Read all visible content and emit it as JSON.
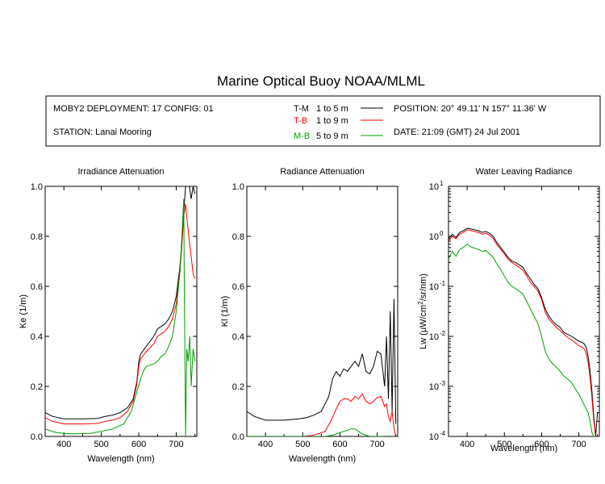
{
  "header": {
    "title": "Marine Optical Buoy NOAA/MLML",
    "deployment": "MOBY2 DEPLOYMENT: 17 CONFIG: 01",
    "station": "STATION: Lanai Mooring",
    "position": "POSITION: 20° 49.11' N   157° 11.36' W",
    "date": "DATE: 21:09 (GMT) 24 Jul 2001"
  },
  "legend": [
    {
      "key": "T-M",
      "range": "1 to 5  m",
      "color": "#000000"
    },
    {
      "key": "T-B",
      "range": "1 to 9  m",
      "color": "#ff0000"
    },
    {
      "key": "M-B",
      "range": "5 to 9  m",
      "color": "#00a000"
    }
  ],
  "chart_data": [
    {
      "type": "line",
      "title": "Irradiance Attenuation",
      "xlabel": "Wavelength (nm)",
      "ylabel": "Ke  (1/m)",
      "xlim": [
        350,
        755
      ],
      "ylim": [
        0,
        1
      ],
      "xticks": [
        400,
        500,
        600,
        700
      ],
      "yticks": [
        0.0,
        0.2,
        0.4,
        0.6,
        0.8,
        1.0
      ],
      "ytick_labels": [
        "0.0",
        "0.2",
        "0.4",
        "0.6",
        "0.8",
        "1.0"
      ],
      "series": [
        {
          "name": "T-M",
          "color": "#000000",
          "x": [
            350,
            370,
            400,
            450,
            490,
            510,
            530,
            550,
            570,
            585,
            595,
            600,
            605,
            610,
            620,
            640,
            650,
            660,
            670,
            680,
            690,
            700,
            710,
            715,
            720,
            725,
            730,
            735,
            740,
            745,
            750
          ],
          "y": [
            0.095,
            0.08,
            0.07,
            0.07,
            0.072,
            0.08,
            0.085,
            0.095,
            0.115,
            0.15,
            0.22,
            0.3,
            0.33,
            0.34,
            0.36,
            0.4,
            0.43,
            0.44,
            0.45,
            0.47,
            0.5,
            0.56,
            0.68,
            0.78,
            0.9,
            1.0,
            1.0,
            1.0,
            0.95,
            1.0,
            0.97
          ]
        },
        {
          "name": "T-B",
          "color": "#ff0000",
          "x": [
            350,
            370,
            400,
            450,
            490,
            510,
            530,
            550,
            570,
            585,
            595,
            600,
            605,
            610,
            620,
            640,
            650,
            660,
            670,
            680,
            690,
            700,
            710,
            715,
            720,
            725,
            730,
            735,
            740,
            745,
            750
          ],
          "y": [
            0.075,
            0.06,
            0.05,
            0.05,
            0.052,
            0.06,
            0.065,
            0.075,
            0.1,
            0.14,
            0.21,
            0.28,
            0.31,
            0.32,
            0.34,
            0.37,
            0.4,
            0.41,
            0.42,
            0.44,
            0.47,
            0.53,
            0.66,
            0.76,
            0.88,
            0.93,
            0.85,
            0.78,
            0.72,
            0.65,
            0.63
          ]
        },
        {
          "name": "M-B",
          "color": "#00a000",
          "x": [
            350,
            380,
            420,
            470,
            500,
            530,
            560,
            580,
            595,
            605,
            612,
            620,
            640,
            650,
            660,
            670,
            680,
            690,
            700,
            710,
            715,
            720,
            722,
            725,
            728,
            732,
            736,
            740,
            745,
            750
          ],
          "y": [
            0.03,
            0.015,
            0.01,
            0.012,
            0.02,
            0.03,
            0.05,
            0.1,
            0.18,
            0.23,
            0.26,
            0.28,
            0.29,
            0.3,
            0.32,
            0.33,
            0.36,
            0.4,
            0.5,
            0.66,
            0.8,
            0.95,
            0.5,
            0.0,
            0.35,
            0.3,
            0.4,
            0.2,
            0.35,
            0.3
          ]
        }
      ]
    },
    {
      "type": "line",
      "title": "Radiance Attenuation",
      "xlabel": "Wavelength (nm)",
      "ylabel": "Kl  (1/m)",
      "xlim": [
        350,
        755
      ],
      "ylim": [
        0,
        1
      ],
      "xticks": [
        400,
        500,
        600,
        700
      ],
      "yticks": [
        0.0,
        0.2,
        0.4,
        0.6,
        0.8,
        1.0
      ],
      "ytick_labels": [
        "0.0",
        "0.2",
        "0.4",
        "0.6",
        "0.8",
        "1.0"
      ],
      "series": [
        {
          "name": "T-M",
          "color": "#000000",
          "x": [
            350,
            370,
            400,
            450,
            490,
            510,
            530,
            550,
            570,
            580,
            590,
            600,
            610,
            620,
            630,
            640,
            650,
            660,
            670,
            680,
            690,
            700,
            710,
            720,
            725,
            730,
            735,
            740,
            745,
            750
          ],
          "y": [
            0.1,
            0.08,
            0.065,
            0.065,
            0.07,
            0.075,
            0.085,
            0.1,
            0.16,
            0.23,
            0.26,
            0.24,
            0.27,
            0.26,
            0.28,
            0.3,
            0.28,
            0.33,
            0.26,
            0.25,
            0.28,
            0.34,
            0.33,
            0.2,
            0.4,
            0.15,
            0.5,
            0.1,
            0.55,
            0.05
          ]
        },
        {
          "name": "T-B",
          "color": "#ff0000",
          "x": [
            350,
            370,
            400,
            450,
            500,
            530,
            560,
            575,
            590,
            600,
            610,
            620,
            630,
            640,
            650,
            660,
            670,
            680,
            690,
            700,
            710,
            720,
            725,
            730,
            735,
            740,
            745,
            750
          ],
          "y": [
            0.0,
            0.0,
            0.0,
            0.0,
            0.0,
            0.005,
            0.02,
            0.06,
            0.11,
            0.14,
            0.15,
            0.15,
            0.14,
            0.16,
            0.15,
            0.17,
            0.14,
            0.13,
            0.14,
            0.155,
            0.16,
            0.12,
            0.13,
            0.08,
            0.06,
            0.1,
            0.03,
            0.0
          ]
        },
        {
          "name": "M-B",
          "color": "#00a000",
          "x": [
            350,
            500,
            560,
            580,
            600,
            610,
            620,
            630,
            640,
            650,
            660,
            670,
            680,
            690,
            700,
            720
          ],
          "y": [
            0.0,
            0.0,
            0.0,
            0.005,
            0.015,
            0.02,
            0.025,
            0.03,
            0.03,
            0.02,
            0.01,
            0.005,
            0.0,
            0.0,
            0.0,
            0.0
          ]
        }
      ]
    },
    {
      "type": "line",
      "title": "Water Leaving Radiance",
      "xlabel": "Wavelength (nm)",
      "ylabel_pre": "Lw  (μW/cm",
      "ylabel_sup": "2",
      "ylabel_post": "/sr/nm)",
      "xlim": [
        350,
        755
      ],
      "ylim": [
        0.0001,
        10
      ],
      "yscale": "log",
      "xticks": [
        400,
        500,
        600,
        700
      ],
      "ytick_exponents": [
        -4,
        -3,
        -2,
        -1,
        0,
        1
      ],
      "series": [
        {
          "name": "T-M",
          "color": "#000000",
          "x": [
            350,
            360,
            370,
            380,
            390,
            400,
            410,
            420,
            430,
            440,
            450,
            460,
            470,
            480,
            490,
            500,
            510,
            520,
            530,
            540,
            550,
            560,
            570,
            580,
            590,
            600,
            610,
            620,
            630,
            640,
            650,
            660,
            670,
            680,
            690,
            700,
            710,
            715,
            720,
            725,
            730,
            735,
            740,
            745,
            750
          ],
          "y": [
            0.9,
            1.1,
            0.95,
            1.2,
            1.3,
            1.45,
            1.4,
            1.35,
            1.3,
            1.2,
            1.25,
            1.15,
            1.0,
            0.75,
            0.6,
            0.48,
            0.38,
            0.32,
            0.3,
            0.27,
            0.24,
            0.18,
            0.14,
            0.11,
            0.09,
            0.06,
            0.035,
            0.025,
            0.02,
            0.017,
            0.015,
            0.012,
            0.011,
            0.01,
            0.009,
            0.008,
            0.0075,
            0.007,
            0.006,
            0.004,
            0.002,
            0.0008,
            0.00025,
            0.0001,
            0.0003
          ]
        },
        {
          "name": "T-B",
          "color": "#ff0000",
          "x": [
            350,
            360,
            370,
            380,
            390,
            400,
            410,
            420,
            430,
            440,
            450,
            460,
            470,
            480,
            490,
            500,
            510,
            520,
            530,
            540,
            550,
            560,
            570,
            580,
            590,
            600,
            610,
            620,
            630,
            640,
            650,
            660,
            670,
            680,
            690,
            700,
            710,
            715,
            720,
            725,
            730,
            735,
            740,
            745
          ],
          "y": [
            0.8,
            1.0,
            0.9,
            1.1,
            1.2,
            1.35,
            1.3,
            1.25,
            1.2,
            1.1,
            1.15,
            1.05,
            0.9,
            0.68,
            0.55,
            0.44,
            0.35,
            0.3,
            0.27,
            0.24,
            0.21,
            0.16,
            0.12,
            0.1,
            0.08,
            0.055,
            0.03,
            0.022,
            0.018,
            0.015,
            0.013,
            0.011,
            0.0095,
            0.0085,
            0.0075,
            0.0065,
            0.006,
            0.0055,
            0.0045,
            0.003,
            0.0015,
            0.0006,
            0.0002,
            0.0001
          ]
        },
        {
          "name": "M-B",
          "color": "#00a000",
          "x": [
            350,
            360,
            370,
            380,
            390,
            400,
            410,
            420,
            430,
            440,
            450,
            460,
            470,
            480,
            490,
            500,
            510,
            520,
            530,
            540,
            550,
            560,
            570,
            580,
            590,
            600,
            610,
            620,
            630,
            640,
            650,
            660,
            670,
            680,
            690,
            700,
            710,
            720,
            725,
            730,
            735,
            740,
            745
          ],
          "y": [
            0.35,
            0.5,
            0.4,
            0.55,
            0.6,
            0.7,
            0.62,
            0.58,
            0.55,
            0.5,
            0.52,
            0.45,
            0.38,
            0.28,
            0.22,
            0.16,
            0.12,
            0.1,
            0.09,
            0.08,
            0.07,
            0.05,
            0.035,
            0.025,
            0.018,
            0.01,
            0.005,
            0.0035,
            0.0028,
            0.0024,
            0.002,
            0.0016,
            0.0014,
            0.0012,
            0.0009,
            0.0007,
            0.0005,
            0.00035,
            0.0003,
            0.0002,
            0.00012,
            0.0001,
            0.0001
          ]
        }
      ]
    }
  ]
}
